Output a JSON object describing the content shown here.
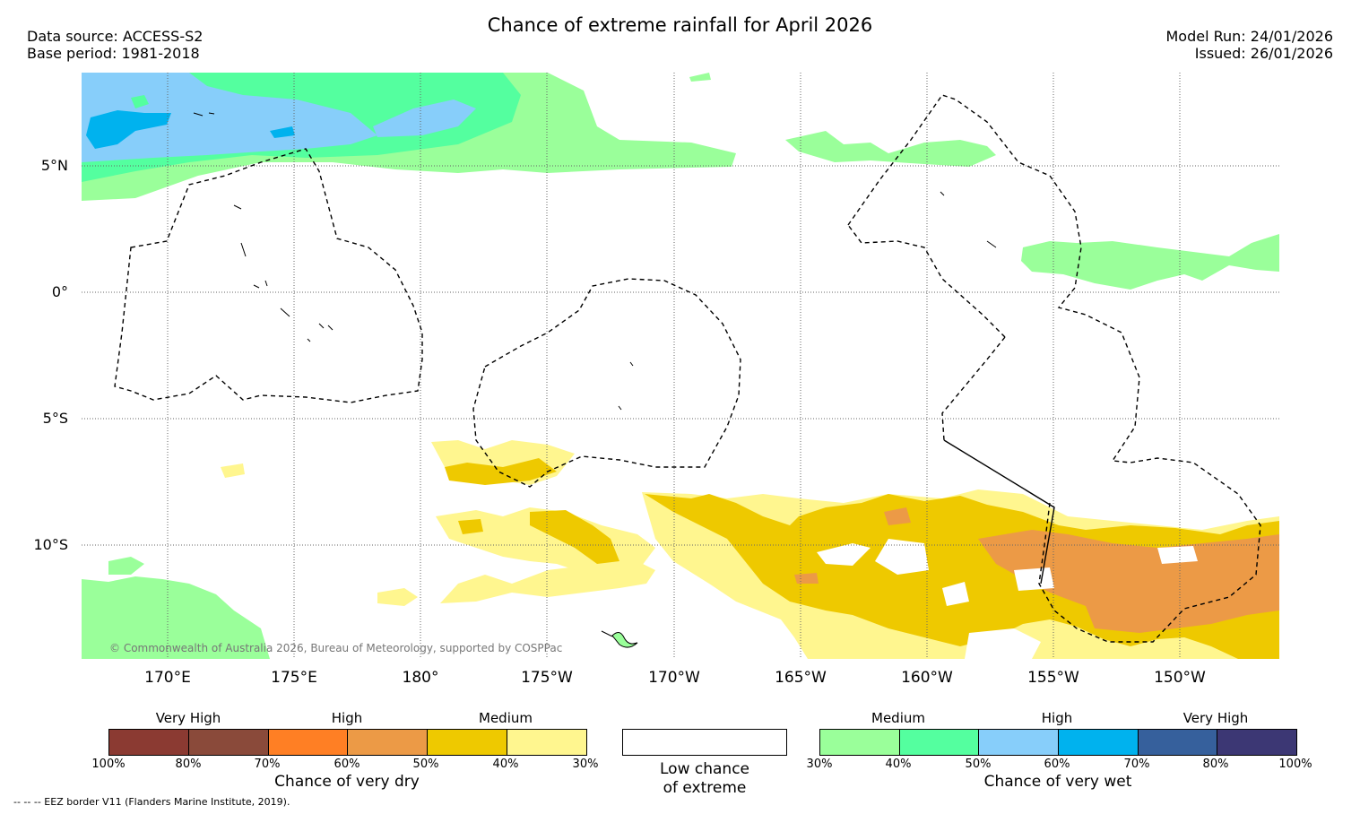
{
  "header": {
    "title": "Chance of extreme rainfall for April 2026",
    "data_source": "Data source: ACCESS-S2",
    "base_period": "Base period: 1981-2018",
    "model_run": "Model Run: 24/01/2026",
    "issued": "Issued: 26/01/2026"
  },
  "map": {
    "lat_labels": [
      "5°N",
      "0°",
      "5°S",
      "10°S"
    ],
    "lon_labels": [
      "170°E",
      "175°E",
      "180°",
      "175°W",
      "170°W",
      "165°W",
      "160°W",
      "155°W",
      "150°W"
    ],
    "copyright": "© Commonwealth of Australia 2026, Bureau of Meteorology, supported by COSPPac"
  },
  "legend_dry": {
    "categories": [
      "Very High",
      "High",
      "Medium"
    ],
    "colors": [
      "#8b3a32",
      "#8a4a3a",
      "#ff7f24",
      "#ec9a46",
      "#eec900",
      "#fff68f"
    ],
    "ticks": [
      "100%",
      "80%",
      "70%",
      "60%",
      "50%",
      "40%",
      "30%"
    ],
    "title": "Chance of very dry"
  },
  "legend_low": {
    "line1": "Low chance",
    "line2": "of extreme"
  },
  "legend_wet": {
    "categories": [
      "Medium",
      "High",
      "Very High"
    ],
    "colors": [
      "#9aff9a",
      "#54ff9f",
      "#87cefa",
      "#00b2ee",
      "#36609c",
      "#3c3774"
    ],
    "ticks": [
      "30%",
      "40%",
      "50%",
      "60%",
      "70%",
      "80%",
      "100%"
    ],
    "title": "Chance of very wet"
  },
  "footnote": "--  --  -- EEZ border V11 (Flanders Marine Institute, 2019).",
  "colors": {
    "dry_medium_light": "#fff68f",
    "dry_medium": "#eec900",
    "dry_high": "#ec9a46",
    "wet_medium": "#9aff9a",
    "wet_medium2": "#54ff9f",
    "wet_high": "#87cefa",
    "wet_high2": "#00b2ee"
  }
}
